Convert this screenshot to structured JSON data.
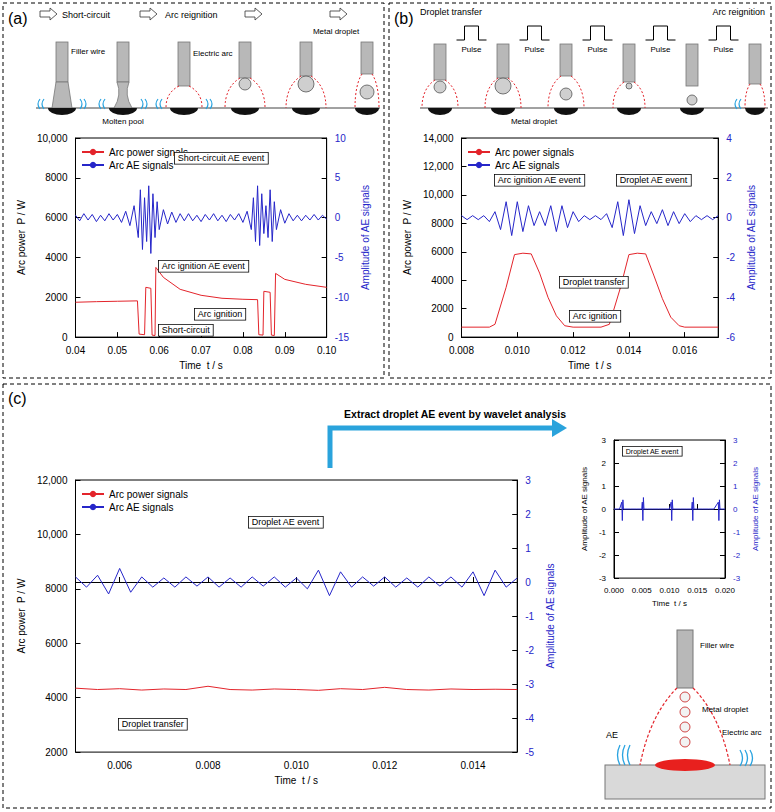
{
  "panels": [
    {
      "label": "(a)",
      "stages": [
        "Short-circuit",
        "Arc reignition"
      ],
      "labels": [
        "Filler wire",
        "Molten pool",
        "Electric arc",
        "Metal droplet"
      ]
    },
    {
      "label": "(b)",
      "stages": [
        "Droplet transfer",
        "Arc reignition"
      ],
      "pulses": [
        "Pulse",
        "Pulse",
        "Pulse",
        "Pulse",
        "Pulse"
      ],
      "labels": [
        "Metal droplet"
      ]
    },
    {
      "label": "(c)",
      "arrow_text": "Extract droplet AE event by wavelet analysis",
      "labels": [
        "Filler wire",
        "Metal droplet",
        "Electric arc",
        "AE"
      ]
    }
  ],
  "chart_data": [
    {
      "type": "line",
      "xlabel": "Time  t / s",
      "ylabel": "Arc power  P / W",
      "y2label": "Amplitude of AE signals",
      "xlim": [
        0.04,
        0.1
      ],
      "xticks": [
        0.04,
        0.05,
        0.06,
        0.07,
        0.08,
        0.09,
        {
          "value": 0.1,
          "label": "0.10"
        }
      ],
      "ylim": [
        0,
        10000
      ],
      "yticks": [
        0,
        2000,
        4000,
        6000,
        8000,
        {
          "value": 10000,
          "label": "10,000"
        }
      ],
      "y2lim": [
        -15,
        10
      ],
      "y2ticks": [
        -15,
        -10,
        -5,
        0,
        5,
        10
      ],
      "grid": false,
      "legend": "upper left",
      "annotations": [
        "Short-circuit AE event",
        "Arc ignition AE event",
        "Arc ignition",
        "Short-circuit"
      ],
      "series": [
        {
          "name": "Arc power signals",
          "color": "#e3242b",
          "axis": "y",
          "x": [
            0.04,
            0.045,
            0.05,
            0.0548,
            0.0552,
            0.0565,
            0.0568,
            0.058,
            0.0583,
            0.059,
            0.0592,
            0.061,
            0.065,
            0.07,
            0.075,
            0.08,
            0.0835,
            0.0838,
            0.0848,
            0.085,
            0.0865,
            0.0868,
            0.0875,
            0.0878,
            0.09,
            0.095,
            0.1
          ],
          "values": [
            1750,
            1780,
            1800,
            1820,
            150,
            120,
            2500,
            2450,
            100,
            80,
            3500,
            3000,
            2400,
            2100,
            1950,
            1900,
            1880,
            120,
            100,
            2300,
            2250,
            100,
            80,
            3200,
            2900,
            2650,
            2500
          ]
        },
        {
          "name": "Arc AE signals",
          "color": "#2626c9",
          "axis": "y2",
          "x": [
            0.04,
            0.041,
            0.042,
            0.043,
            0.044,
            0.045,
            0.046,
            0.047,
            0.048,
            0.049,
            0.05,
            0.051,
            0.052,
            0.053,
            0.054,
            0.055,
            0.0555,
            0.056,
            0.0565,
            0.057,
            0.0575,
            0.058,
            0.0585,
            0.059,
            0.0595,
            0.06,
            0.061,
            0.062,
            0.063,
            0.064,
            0.065,
            0.066,
            0.067,
            0.068,
            0.069,
            0.07,
            0.071,
            0.072,
            0.073,
            0.074,
            0.075,
            0.076,
            0.077,
            0.078,
            0.079,
            0.08,
            0.081,
            0.082,
            0.0825,
            0.083,
            0.0835,
            0.084,
            0.0845,
            0.085,
            0.0855,
            0.086,
            0.0865,
            0.087,
            0.0875,
            0.088,
            0.089,
            0.09,
            0.091,
            0.092,
            0.093,
            0.094,
            0.095,
            0.096,
            0.097,
            0.098,
            0.099,
            0.1
          ],
          "values": [
            0.3,
            -0.4,
            0.5,
            -0.3,
            0.4,
            -0.5,
            0.3,
            -0.4,
            0.5,
            -0.3,
            0.4,
            -0.6,
            0.8,
            -1.0,
            1.5,
            -2.5,
            3.5,
            -4.0,
            2.5,
            -3,
            4,
            -4.5,
            3,
            -2.5,
            2,
            -1.5,
            1,
            -0.8,
            0.7,
            -0.6,
            0.5,
            -0.4,
            0.5,
            -0.4,
            0.3,
            -0.5,
            0.4,
            -0.3,
            0.5,
            -0.4,
            0.3,
            -0.5,
            0.4,
            -0.3,
            0.5,
            -0.6,
            0.8,
            -1.5,
            2.5,
            -3,
            4,
            -3.5,
            3,
            -2,
            1.5,
            -2.5,
            3.5,
            -3,
            2,
            -1.5,
            1,
            -0.7,
            0.5,
            -0.4,
            0.3,
            -0.4,
            0.3,
            -0.3,
            0.4,
            -0.3,
            0.3,
            -0.2
          ]
        }
      ]
    },
    {
      "type": "line",
      "xlabel": "Time  t / s",
      "ylabel": "Arc power  P / W",
      "y2label": "Amplitude of AE signals",
      "xlim": [
        0.008,
        0.0172
      ],
      "xticks": [
        0.008,
        {
          "value": 0.01,
          "label": "0.010"
        },
        0.012,
        0.014,
        0.016
      ],
      "ylim": [
        0,
        14000
      ],
      "yticks": [
        0,
        2000,
        4000,
        6000,
        8000,
        {
          "value": 10000,
          "label": "10,000"
        },
        {
          "value": 12000,
          "label": "12,000"
        },
        {
          "value": 14000,
          "label": "14,000"
        }
      ],
      "y2lim": [
        -6,
        4
      ],
      "y2ticks": [
        -6,
        -4,
        -2,
        0,
        2,
        4
      ],
      "grid": false,
      "legend": "upper left",
      "annotations": [
        "Arc ignition AE event",
        "Droplet AE event",
        "Droplet transfer",
        "Arc ignition"
      ],
      "series": [
        {
          "name": "Arc power signals",
          "color": "#e3242b",
          "axis": "y",
          "x": [
            0.008,
            0.009,
            0.0092,
            0.0096,
            0.0099,
            0.0102,
            0.0105,
            0.0108,
            0.0111,
            0.0114,
            0.0117,
            0.012,
            0.013,
            0.0133,
            0.0137,
            0.014,
            0.0143,
            0.0146,
            0.0149,
            0.0152,
            0.0155,
            0.0158,
            0.016,
            0.0172
          ],
          "values": [
            700,
            700,
            900,
            3500,
            5800,
            5900,
            5850,
            4500,
            2800,
            1500,
            800,
            700,
            700,
            900,
            3500,
            5800,
            5900,
            5850,
            4300,
            2700,
            1400,
            800,
            700,
            700
          ]
        },
        {
          "name": "Arc AE signals",
          "color": "#2626c9",
          "axis": "y2",
          "x": [
            0.008,
            0.0082,
            0.0084,
            0.0086,
            0.0088,
            0.009,
            0.0092,
            0.0094,
            0.0096,
            0.0098,
            0.01,
            0.0102,
            0.0104,
            0.0106,
            0.0108,
            0.011,
            0.0112,
            0.0114,
            0.0116,
            0.0118,
            0.012,
            0.0122,
            0.0124,
            0.0126,
            0.0128,
            0.013,
            0.0132,
            0.0134,
            0.0136,
            0.0138,
            0.014,
            0.0142,
            0.0144,
            0.0146,
            0.0148,
            0.015,
            0.0152,
            0.0154,
            0.0156,
            0.0158,
            0.016,
            0.0162,
            0.0164,
            0.0166,
            0.0168,
            0.017,
            0.0172
          ],
          "values": [
            0.1,
            -0.1,
            0.1,
            -0.1,
            0.1,
            -0.2,
            0.3,
            -0.6,
            0.8,
            -0.9,
            0.8,
            -0.7,
            0.6,
            -0.4,
            0.3,
            -0.4,
            0.6,
            -0.7,
            0.6,
            -0.5,
            0.3,
            -0.2,
            0.1,
            -0.1,
            0.1,
            -0.1,
            0.2,
            -0.5,
            0.8,
            -0.9,
            0.9,
            -0.8,
            0.6,
            -0.4,
            0.3,
            -0.3,
            0.4,
            -0.4,
            0.3,
            -0.3,
            0.2,
            -0.2,
            0.1,
            -0.1,
            0.1,
            -0.1,
            0.1
          ]
        }
      ]
    },
    {
      "type": "line",
      "xlabel": "Time  t / s",
      "ylabel": "Arc power  P / W",
      "y2label": "Amplitude of AE signals",
      "xlim": [
        0.005,
        0.015
      ],
      "xticks": [
        0.006,
        0.008,
        {
          "value": 0.01,
          "label": "0.010"
        },
        0.012,
        0.014
      ],
      "ylim": [
        2000,
        12000
      ],
      "yticks": [
        2000,
        4000,
        6000,
        8000,
        {
          "value": 10000,
          "label": "10,000"
        },
        {
          "value": 12000,
          "label": "12,000"
        }
      ],
      "y2lim": [
        -5,
        3
      ],
      "y2ticks": [
        -5,
        -4,
        -3,
        -2,
        -1,
        0,
        1,
        2,
        3
      ],
      "grid": false,
      "legend": "upper left",
      "annotations": [
        "Droplet AE event",
        "Droplet transfer"
      ],
      "series": [
        {
          "name": "Arc power signals",
          "color": "#e3242b",
          "axis": "y",
          "x": [
            0.005,
            0.0055,
            0.006,
            0.0065,
            0.007,
            0.0075,
            0.008,
            0.0085,
            0.009,
            0.0095,
            0.01,
            0.0105,
            0.011,
            0.0115,
            0.012,
            0.0125,
            0.013,
            0.0135,
            0.014,
            0.0145,
            0.015
          ],
          "values": [
            4350,
            4300,
            4330,
            4280,
            4320,
            4300,
            4420,
            4300,
            4280,
            4320,
            4300,
            4270,
            4330,
            4300,
            4380,
            4300,
            4280,
            4320,
            4300,
            4310,
            4300
          ]
        },
        {
          "name": "Arc AE signals",
          "color": "#2626c9",
          "axis": "y2",
          "x": [
            0.005,
            0.00525,
            0.0055,
            0.00575,
            0.006,
            0.00625,
            0.0065,
            0.00675,
            0.007,
            0.00725,
            0.0075,
            0.00775,
            0.008,
            0.00825,
            0.0085,
            0.00875,
            0.009,
            0.00925,
            0.0095,
            0.00975,
            0.01,
            0.01025,
            0.0105,
            0.01075,
            0.011,
            0.01125,
            0.0115,
            0.01175,
            0.012,
            0.01225,
            0.0125,
            0.01275,
            0.013,
            0.01325,
            0.0135,
            0.01375,
            0.014,
            0.01425,
            0.0145,
            0.01475,
            0.015
          ],
          "values": [
            0.15,
            -0.15,
            0.2,
            -0.35,
            0.4,
            -0.3,
            0.15,
            -0.15,
            0.12,
            -0.15,
            0.15,
            -0.12,
            0.15,
            -0.15,
            0.12,
            -0.15,
            0.15,
            -0.12,
            0.15,
            -0.15,
            0.12,
            -0.2,
            0.35,
            -0.4,
            0.3,
            -0.15,
            0.15,
            -0.12,
            0.15,
            -0.15,
            0.12,
            -0.15,
            0.15,
            -0.12,
            0.15,
            -0.15,
            0.3,
            -0.4,
            0.35,
            -0.15,
            0.12
          ]
        }
      ]
    },
    {
      "type": "line",
      "xlabel": "Time  t / s",
      "ylabel": "Amplitude of AE signals",
      "y2label": "Amplitude of AE signals",
      "xlim": [
        0,
        0.02
      ],
      "xticks": [
        {
          "value": 0,
          "label": "0.000"
        },
        0.005,
        {
          "value": 0.01,
          "label": "0.010"
        },
        0.015,
        {
          "value": 0.02,
          "label": "0.020"
        }
      ],
      "ylim": [
        -3,
        3
      ],
      "yticks": [
        -3,
        -2,
        -1,
        0,
        1,
        2,
        3
      ],
      "y2lim": [
        -3,
        3
      ],
      "y2ticks": [
        -3,
        -2,
        -1,
        0,
        1,
        2,
        3
      ],
      "grid": false,
      "annotations": [
        "Droplet AE event"
      ],
      "series": [
        {
          "color": "#2626c9",
          "axis": "y",
          "x": [
            0,
            0.001,
            0.0014,
            0.0015,
            0.0016,
            0.0017,
            0.002,
            0.003,
            0.004,
            0.005,
            0.0051,
            0.0052,
            0.0053,
            0.0054,
            0.006,
            0.007,
            0.008,
            0.009,
            0.01,
            0.0103,
            0.0104,
            0.0105,
            0.0106,
            0.011,
            0.012,
            0.013,
            0.014,
            0.0141,
            0.0142,
            0.0143,
            0.0144,
            0.015,
            0.016,
            0.017,
            0.018,
            0.0188,
            0.0189,
            0.019,
            0.0191,
            0.0195,
            0.02
          ],
          "values": [
            0,
            0,
            0.3,
            -0.5,
            0.4,
            0,
            0,
            0,
            0,
            0,
            0.3,
            -0.5,
            0.5,
            0,
            0,
            0,
            0,
            0,
            0,
            0.3,
            -0.5,
            0.4,
            0,
            0,
            0,
            0,
            0,
            0.3,
            -0.5,
            0.5,
            0,
            0,
            0,
            0,
            0,
            0.3,
            -0.5,
            0.4,
            0,
            0,
            0
          ]
        }
      ]
    }
  ]
}
